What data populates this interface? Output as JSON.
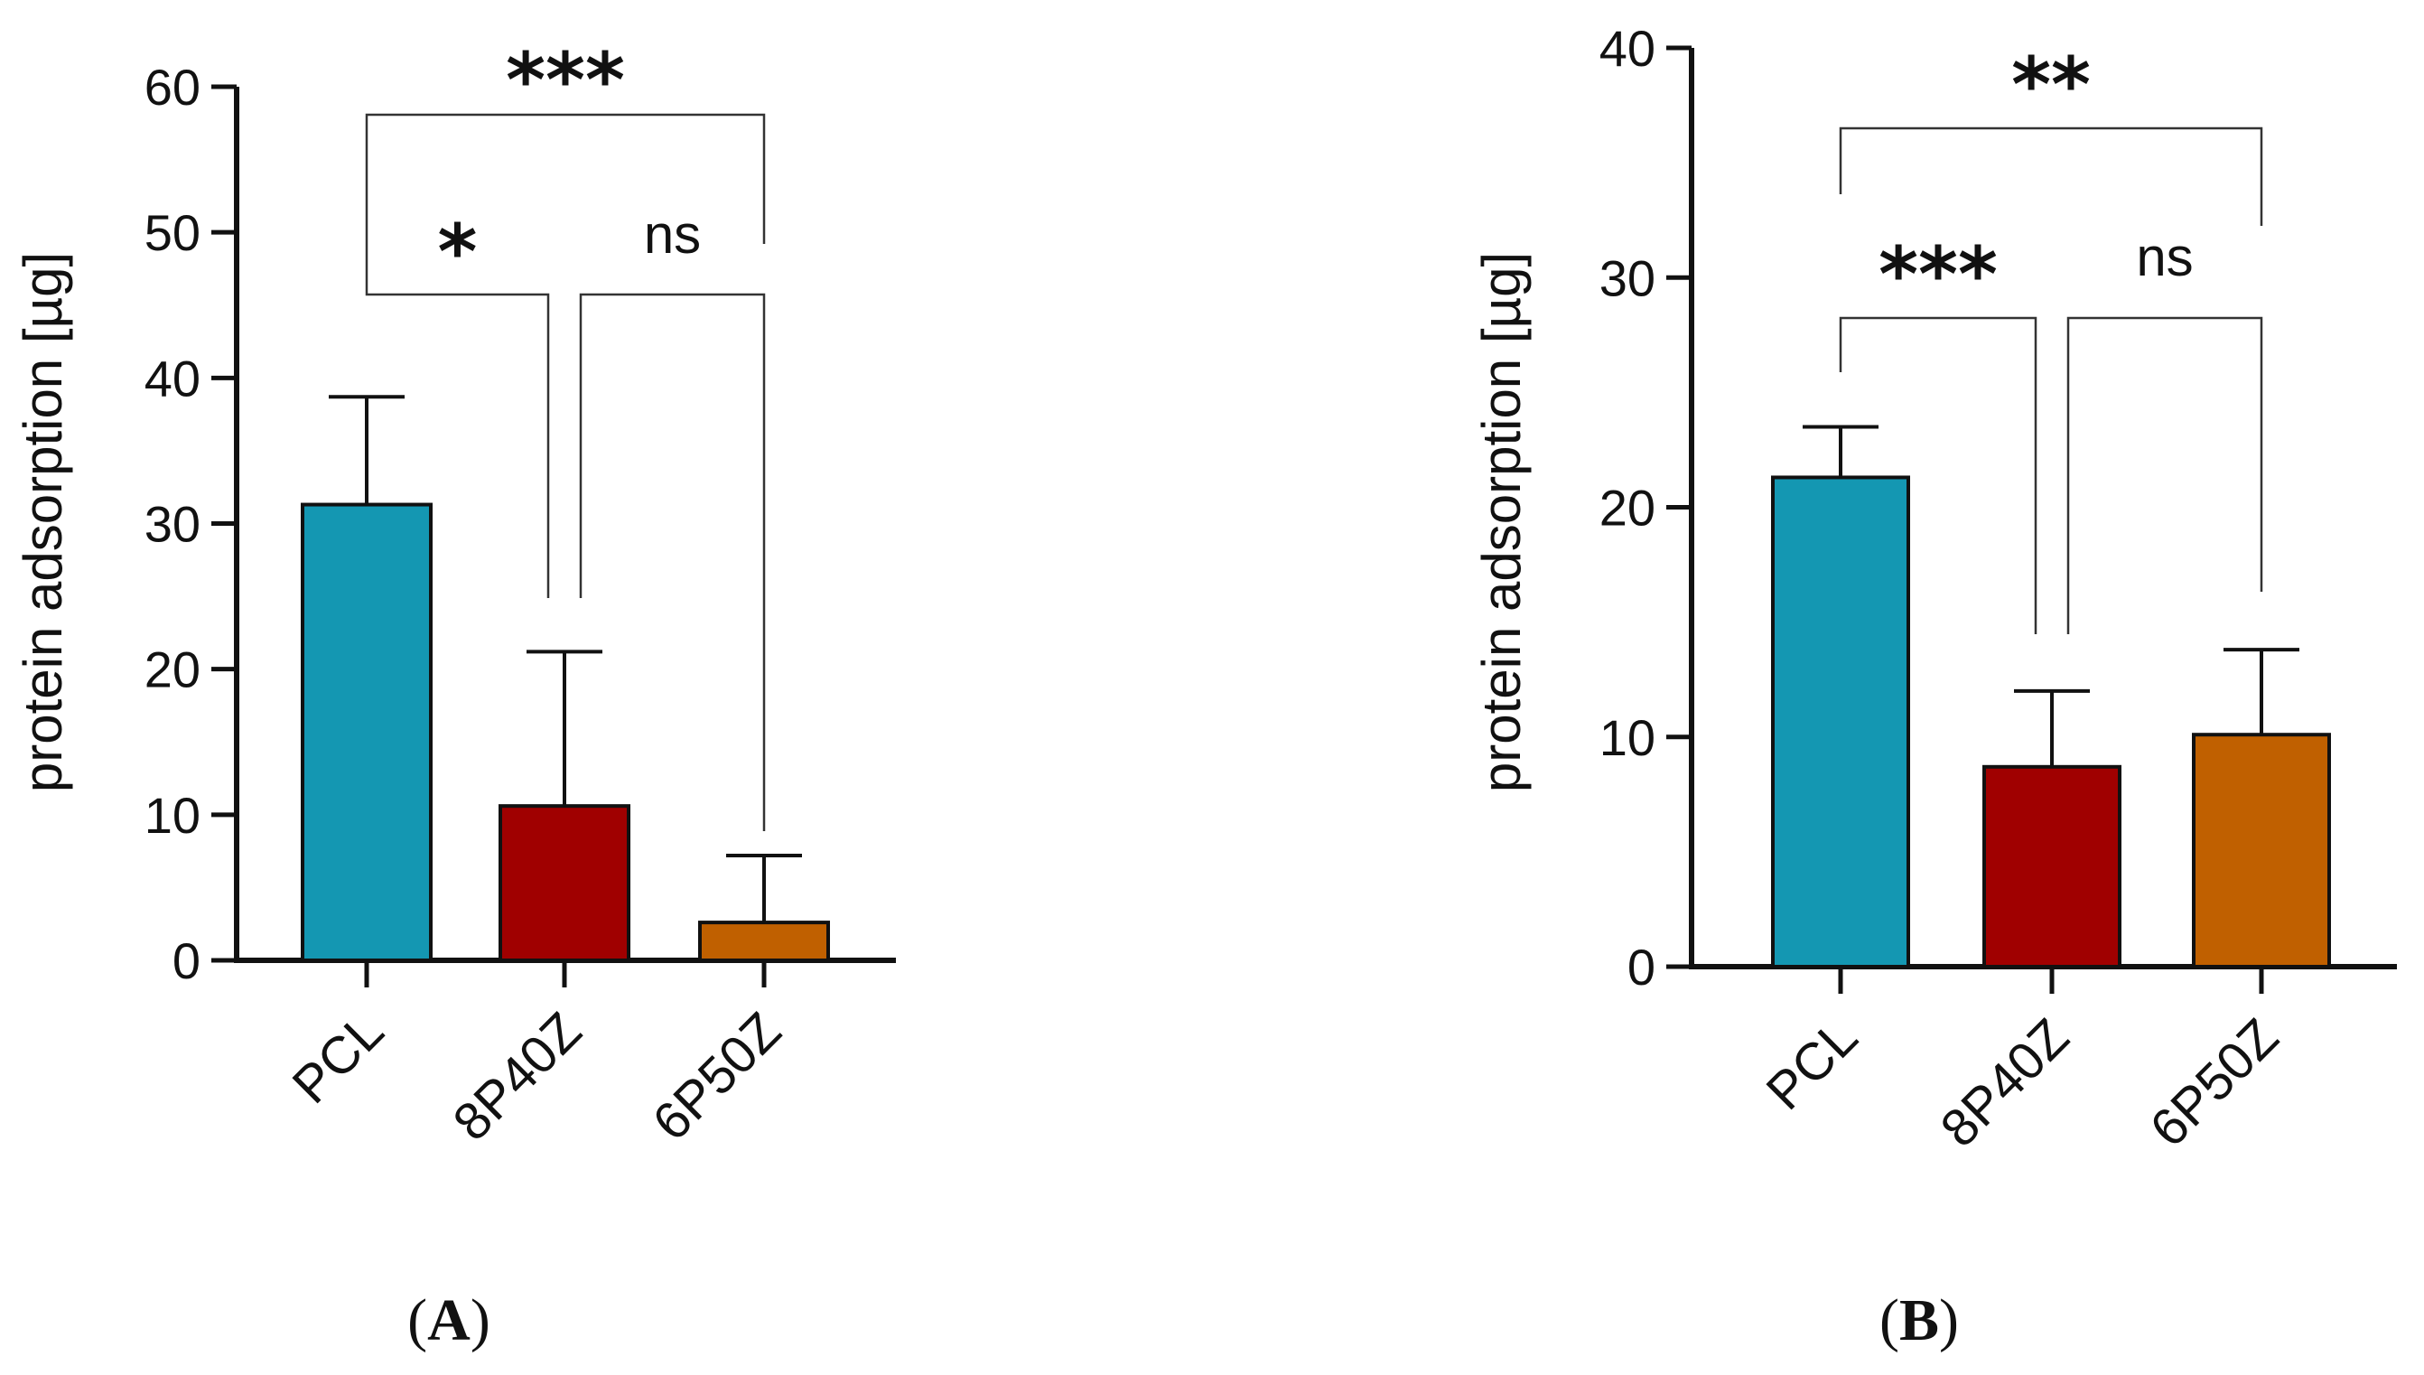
{
  "chart_data": [
    {
      "type": "bar",
      "panel": "A",
      "categories": [
        "PCL",
        "8P40Z",
        "6P50Z"
      ],
      "values": [
        31.3,
        10.6,
        2.6
      ],
      "errors": [
        7.4,
        10.6,
        4.6
      ],
      "colors": [
        "#1497b2",
        "#a00000",
        "#c06000"
      ],
      "ylabel": "protein adsorption [µg]",
      "ylim": [
        0,
        60
      ],
      "yticks": [
        0,
        10,
        20,
        30,
        40,
        50,
        60
      ],
      "ytick_labels": [
        "0",
        "10",
        "20",
        "30",
        "40",
        "50",
        "60"
      ],
      "significance": [
        {
          "from": 0,
          "to": 1,
          "label": "*",
          "level": 1
        },
        {
          "from": 1,
          "to": 2,
          "label": "ns",
          "level": 1
        },
        {
          "from": 0,
          "to": 2,
          "label": "***",
          "level": 2
        }
      ]
    },
    {
      "type": "bar",
      "panel": "B",
      "categories": [
        "PCL",
        "8P40Z",
        "6P50Z"
      ],
      "values": [
        21.3,
        8.7,
        10.1
      ],
      "errors": [
        2.2,
        3.3,
        3.7
      ],
      "colors": [
        "#1497b2",
        "#a00000",
        "#c06000"
      ],
      "ylabel": "protein adsorption [µg]",
      "ylim": [
        0,
        40
      ],
      "yticks": [
        0,
        10,
        20,
        30,
        40
      ],
      "ytick_labels": [
        "0",
        "10",
        "20",
        "30",
        "40"
      ],
      "significance": [
        {
          "from": 0,
          "to": 1,
          "label": "***",
          "level": 1
        },
        {
          "from": 1,
          "to": 2,
          "label": "ns",
          "level": 1
        },
        {
          "from": 0,
          "to": 2,
          "label": "**",
          "level": 2
        }
      ]
    }
  ],
  "panel_labels": {
    "A": {
      "open": "(",
      "letter": "A",
      "close": ")"
    },
    "B": {
      "open": "(",
      "letter": "B",
      "close": ")"
    }
  }
}
